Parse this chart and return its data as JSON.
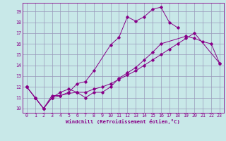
{
  "xlabel": "Windchill (Refroidissement éolien,°C)",
  "bg_color": "#c8e8e8",
  "grid_color": "#9999bb",
  "line_color": "#880088",
  "xlim_min": -0.5,
  "xlim_max": 23.5,
  "ylim_min": 9.6,
  "ylim_max": 19.8,
  "xticks": [
    0,
    1,
    2,
    3,
    4,
    5,
    6,
    7,
    8,
    9,
    10,
    11,
    12,
    13,
    14,
    15,
    16,
    17,
    18,
    19,
    20,
    21,
    22,
    23
  ],
  "yticks": [
    10,
    11,
    12,
    13,
    14,
    15,
    16,
    17,
    18,
    19
  ],
  "curve1_x": [
    0,
    1,
    2,
    3,
    4,
    5,
    6,
    7,
    8,
    10,
    11,
    12,
    13,
    14,
    15,
    16,
    17,
    18
  ],
  "curve1_y": [
    12.0,
    11.0,
    10.0,
    11.2,
    11.2,
    11.5,
    12.3,
    12.5,
    13.5,
    15.9,
    16.6,
    18.5,
    18.1,
    18.5,
    19.2,
    19.4,
    18.0,
    17.5
  ],
  "curve2_x": [
    0,
    1,
    2,
    3,
    4,
    5,
    6,
    7,
    8,
    9,
    10,
    11,
    12,
    13,
    14,
    15,
    16,
    19,
    20,
    21,
    22,
    23
  ],
  "curve2_y": [
    12.0,
    11.0,
    10.0,
    11.0,
    11.5,
    11.8,
    11.5,
    11.0,
    11.5,
    11.5,
    12.0,
    12.8,
    13.3,
    13.8,
    14.5,
    15.2,
    16.0,
    16.7,
    16.5,
    16.2,
    16.0,
    14.2
  ],
  "curve3_x": [
    0,
    1,
    2,
    3,
    4,
    5,
    6,
    7,
    8,
    9,
    10,
    11,
    12,
    13,
    14,
    15,
    16,
    17,
    18,
    19,
    20,
    23
  ],
  "curve3_y": [
    12.0,
    11.0,
    10.0,
    11.0,
    11.2,
    11.4,
    11.5,
    11.5,
    11.8,
    12.0,
    12.3,
    12.7,
    13.1,
    13.5,
    14.0,
    14.5,
    15.0,
    15.5,
    16.0,
    16.5,
    17.0,
    14.2
  ]
}
